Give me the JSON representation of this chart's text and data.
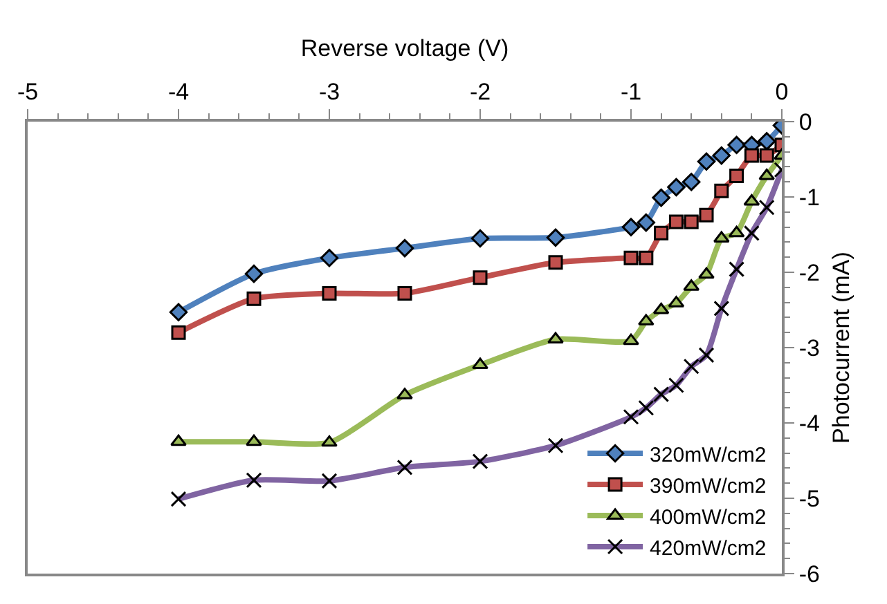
{
  "chart_data": {
    "type": "line",
    "xlabel": "Reverse voltage (V)",
    "ylabel": "Photocurrent (mA)",
    "x": [
      -4,
      -3.5,
      -3,
      -2.5,
      -2,
      -1.5,
      -1,
      -0.9,
      -0.8,
      -0.7,
      -0.6,
      -0.5,
      -0.4,
      -0.3,
      -0.2,
      -0.1,
      0
    ],
    "series": [
      {
        "name": "320mW/cm2",
        "color": "#4f81bd",
        "marker": "diamond",
        "values": [
          -2.53,
          -2.02,
          -1.81,
          -1.68,
          -1.55,
          -1.54,
          -1.4,
          -1.34,
          -1.01,
          -0.87,
          -0.8,
          -0.53,
          -0.45,
          -0.31,
          -0.31,
          -0.26,
          -0.05
        ]
      },
      {
        "name": "390mW/cm2",
        "color": "#c0504d",
        "marker": "square",
        "values": [
          -2.8,
          -2.35,
          -2.28,
          -2.28,
          -2.07,
          -1.87,
          -1.81,
          -1.81,
          -1.48,
          -1.33,
          -1.33,
          -1.24,
          -0.92,
          -0.72,
          -0.45,
          -0.45,
          -0.31
        ]
      },
      {
        "name": "400mW/cm2",
        "color": "#9bbb59",
        "marker": "triangle",
        "values": [
          -4.25,
          -4.25,
          -4.26,
          -3.63,
          -3.23,
          -2.89,
          -2.91,
          -2.65,
          -2.5,
          -2.41,
          -2.19,
          -2.03,
          -1.55,
          -1.48,
          -1.06,
          -0.72,
          -0.45
        ]
      },
      {
        "name": "420mW/cm2",
        "color": "#8064a2",
        "marker": "cross",
        "values": [
          -5.01,
          -4.76,
          -4.77,
          -4.59,
          -4.51,
          -4.3,
          -3.92,
          -3.8,
          -3.62,
          -3.5,
          -3.25,
          -3.1,
          -2.48,
          -1.96,
          -1.48,
          -1.14,
          -0.64
        ]
      }
    ],
    "xlim": [
      -5,
      0
    ],
    "xticks": [
      -5,
      -4,
      -3,
      -2,
      -1,
      0
    ],
    "ylim": [
      -6,
      0
    ],
    "yticks": [
      -6,
      -5,
      -4,
      -3,
      -2,
      -1,
      0
    ],
    "legend": "bottom right",
    "line_style": "solid"
  }
}
